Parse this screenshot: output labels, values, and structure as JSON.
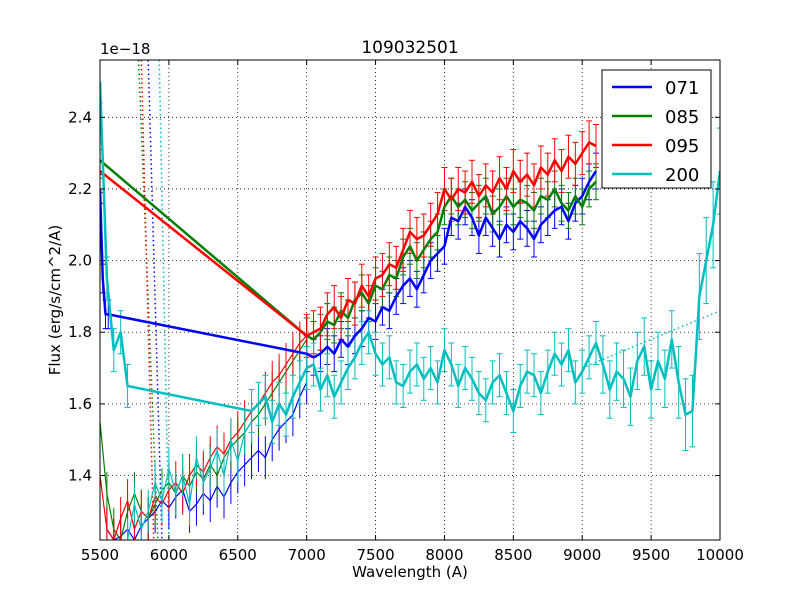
{
  "chart_data": {
    "type": "line",
    "title": "109032501",
    "xlabel": "Wavelength (A)",
    "ylabel": "Flux (erg/s/cm^2/A)",
    "y_offset_label": "1e−18",
    "xlim": [
      5500,
      10000
    ],
    "ylim": [
      1.22,
      2.56
    ],
    "xticks": [
      5500,
      6000,
      6500,
      7000,
      7500,
      8000,
      8500,
      9000,
      9500,
      10000
    ],
    "xtick_labels": [
      "5500",
      "6000",
      "6500",
      "7000",
      "7500",
      "8000",
      "8500",
      "9000",
      "9500",
      "10000"
    ],
    "yticks": [
      1.4,
      1.6,
      1.8,
      2.0,
      2.2,
      2.4
    ],
    "ytick_labels": [
      "1.4",
      "1.6",
      "1.8",
      "2.0",
      "2.2",
      "2.4"
    ],
    "grid": true,
    "legend_position": "top-right",
    "series": [
      {
        "name": "071",
        "color": "#0000ff",
        "x": [
          5500,
          5520,
          5540,
          5560,
          7000,
          7050,
          7100,
          7150,
          7200,
          7250,
          7300,
          7350,
          7400,
          7450,
          7500,
          7550,
          7600,
          7650,
          7700,
          7750,
          7800,
          7850,
          7900,
          7950,
          8000,
          8050,
          8100,
          8150,
          8200,
          8250,
          8300,
          8350,
          8400,
          8450,
          8500,
          8550,
          8600,
          8650,
          8700,
          8750,
          8800,
          8850,
          8900,
          8950,
          9000,
          9050,
          9100
        ],
        "values": [
          2.2,
          1.95,
          1.85,
          1.85,
          1.74,
          1.73,
          1.74,
          1.76,
          1.74,
          1.78,
          1.76,
          1.79,
          1.81,
          1.84,
          1.83,
          1.87,
          1.86,
          1.9,
          1.93,
          1.95,
          1.92,
          1.96,
          2.0,
          2.02,
          2.04,
          2.12,
          2.11,
          2.15,
          2.12,
          2.07,
          2.12,
          2.09,
          2.06,
          2.1,
          2.08,
          2.11,
          2.09,
          2.06,
          2.1,
          2.12,
          2.14,
          2.15,
          2.11,
          2.16,
          2.18,
          2.22,
          2.25
        ],
        "errors": [
          0.04,
          0.04,
          0.04,
          0.04,
          0.05,
          0.05,
          0.05,
          0.05,
          0.05,
          0.05,
          0.05,
          0.05,
          0.05,
          0.05,
          0.05,
          0.05,
          0.05,
          0.05,
          0.05,
          0.05,
          0.05,
          0.05,
          0.05,
          0.05,
          0.05,
          0.05,
          0.05,
          0.05,
          0.05,
          0.05,
          0.05,
          0.05,
          0.05,
          0.05,
          0.05,
          0.05,
          0.05,
          0.05,
          0.05,
          0.05,
          0.05,
          0.05,
          0.05,
          0.05,
          0.05,
          0.05,
          0.05
        ]
      },
      {
        "name": "085",
        "color": "#008000",
        "x": [
          5500,
          7000,
          7050,
          7100,
          7150,
          7200,
          7250,
          7300,
          7350,
          7400,
          7450,
          7500,
          7550,
          7600,
          7650,
          7700,
          7750,
          7800,
          7850,
          7900,
          7950,
          8000,
          8050,
          8100,
          8150,
          8200,
          8250,
          8300,
          8350,
          8400,
          8450,
          8500,
          8550,
          8600,
          8650,
          8700,
          8750,
          8800,
          8850,
          8900,
          8950,
          9000,
          9050,
          9100
        ],
        "values": [
          2.28,
          1.79,
          1.78,
          1.8,
          1.83,
          1.82,
          1.86,
          1.84,
          1.89,
          1.91,
          1.88,
          1.93,
          1.92,
          1.96,
          1.95,
          2.01,
          2.04,
          2.0,
          2.03,
          2.06,
          2.08,
          2.15,
          2.18,
          2.15,
          2.17,
          2.14,
          2.16,
          2.18,
          2.13,
          2.15,
          2.18,
          2.15,
          2.17,
          2.16,
          2.14,
          2.18,
          2.17,
          2.2,
          2.16,
          2.14,
          2.18,
          2.15,
          2.2,
          2.22
        ],
        "errors": [
          0.05,
          0.05,
          0.05,
          0.05,
          0.05,
          0.05,
          0.05,
          0.05,
          0.05,
          0.05,
          0.05,
          0.05,
          0.05,
          0.05,
          0.05,
          0.05,
          0.05,
          0.05,
          0.05,
          0.05,
          0.05,
          0.05,
          0.05,
          0.05,
          0.05,
          0.05,
          0.05,
          0.05,
          0.05,
          0.05,
          0.05,
          0.05,
          0.05,
          0.05,
          0.05,
          0.05,
          0.05,
          0.05,
          0.05,
          0.05,
          0.05,
          0.05,
          0.05,
          0.05
        ]
      },
      {
        "name": "095",
        "color": "#ff0000",
        "x": [
          5500,
          7000,
          7050,
          7100,
          7150,
          7200,
          7250,
          7300,
          7350,
          7400,
          7450,
          7500,
          7550,
          7600,
          7650,
          7700,
          7750,
          7800,
          7850,
          7900,
          7950,
          8000,
          8050,
          8100,
          8150,
          8200,
          8250,
          8300,
          8350,
          8400,
          8450,
          8500,
          8550,
          8600,
          8650,
          8700,
          8750,
          8800,
          8850,
          8900,
          8950,
          9000,
          9050,
          9100
        ],
        "values": [
          2.25,
          1.79,
          1.8,
          1.81,
          1.85,
          1.87,
          1.84,
          1.89,
          1.88,
          1.93,
          1.9,
          1.95,
          1.96,
          1.99,
          1.98,
          2.03,
          2.08,
          2.06,
          2.07,
          2.1,
          2.13,
          2.2,
          2.17,
          2.2,
          2.19,
          2.22,
          2.18,
          2.21,
          2.19,
          2.23,
          2.2,
          2.25,
          2.22,
          2.24,
          2.21,
          2.26,
          2.24,
          2.28,
          2.25,
          2.29,
          2.27,
          2.3,
          2.33,
          2.32
        ],
        "errors": [
          0.06,
          0.06,
          0.06,
          0.06,
          0.06,
          0.06,
          0.06,
          0.06,
          0.06,
          0.06,
          0.06,
          0.06,
          0.06,
          0.06,
          0.06,
          0.06,
          0.06,
          0.06,
          0.06,
          0.06,
          0.06,
          0.06,
          0.06,
          0.06,
          0.06,
          0.06,
          0.06,
          0.06,
          0.06,
          0.06,
          0.06,
          0.06,
          0.06,
          0.06,
          0.06,
          0.06,
          0.06,
          0.06,
          0.06,
          0.06,
          0.06,
          0.06,
          0.06,
          0.06
        ]
      },
      {
        "name": "200",
        "color": "#00bfbf",
        "x": [
          5500,
          5550,
          5600,
          5650,
          5700,
          6600,
          6650,
          6700,
          6750,
          6800,
          6850,
          6900,
          6950,
          7000,
          7050,
          7100,
          7150,
          7200,
          7250,
          7300,
          7350,
          7400,
          7450,
          7500,
          7550,
          7600,
          7650,
          7700,
          7750,
          7800,
          7850,
          7900,
          7950,
          8000,
          8050,
          8100,
          8150,
          8200,
          8250,
          8300,
          8350,
          8400,
          8450,
          8500,
          8550,
          8600,
          8650,
          8700,
          8750,
          8800,
          8850,
          8900,
          8950,
          9000,
          9050,
          9100,
          9150,
          9200,
          9250,
          9300,
          9350,
          9400,
          9450,
          9500,
          9550,
          9600,
          9650,
          9700,
          9750,
          9800,
          9850,
          9900,
          9950,
          10000
        ],
        "values": [
          2.5,
          1.95,
          1.75,
          1.8,
          1.65,
          1.58,
          1.6,
          1.62,
          1.55,
          1.6,
          1.57,
          1.62,
          1.66,
          1.7,
          1.71,
          1.64,
          1.68,
          1.62,
          1.66,
          1.7,
          1.73,
          1.77,
          1.8,
          1.74,
          1.71,
          1.73,
          1.66,
          1.65,
          1.69,
          1.71,
          1.67,
          1.7,
          1.66,
          1.75,
          1.71,
          1.65,
          1.7,
          1.67,
          1.63,
          1.61,
          1.66,
          1.68,
          1.63,
          1.58,
          1.65,
          1.69,
          1.68,
          1.63,
          1.69,
          1.74,
          1.71,
          1.75,
          1.66,
          1.69,
          1.73,
          1.77,
          1.71,
          1.64,
          1.69,
          1.67,
          1.62,
          1.72,
          1.76,
          1.64,
          1.72,
          1.67,
          1.78,
          1.66,
          1.57,
          1.58,
          1.9,
          2.0,
          2.1,
          2.25
        ],
        "errors": [
          0.06,
          0.06,
          0.06,
          0.06,
          0.06,
          0.06,
          0.06,
          0.06,
          0.06,
          0.06,
          0.06,
          0.06,
          0.06,
          0.06,
          0.06,
          0.06,
          0.06,
          0.06,
          0.06,
          0.06,
          0.06,
          0.06,
          0.06,
          0.06,
          0.06,
          0.06,
          0.06,
          0.06,
          0.06,
          0.06,
          0.06,
          0.06,
          0.06,
          0.06,
          0.06,
          0.06,
          0.06,
          0.06,
          0.06,
          0.06,
          0.06,
          0.06,
          0.06,
          0.06,
          0.06,
          0.06,
          0.06,
          0.06,
          0.06,
          0.06,
          0.06,
          0.06,
          0.06,
          0.06,
          0.06,
          0.06,
          0.08,
          0.08,
          0.08,
          0.08,
          0.08,
          0.08,
          0.08,
          0.08,
          0.08,
          0.08,
          0.08,
          0.1,
          0.1,
          0.1,
          0.12,
          0.12,
          0.12,
          0.12
        ]
      }
    ],
    "faint_segments": [
      {
        "name": "071",
        "color": "#0000ff",
        "x": [
          5550,
          5600,
          5650,
          5700,
          5750,
          5800,
          5850,
          5900,
          5950,
          6000,
          6050,
          6100,
          6150,
          6200,
          6250,
          6300,
          6350,
          6400,
          6450,
          6500,
          6550,
          6600,
          6650,
          6700,
          6750,
          6800,
          6850,
          6900,
          6950,
          7000
        ],
        "values": [
          1.25,
          1.22,
          1.23,
          1.25,
          1.22,
          1.26,
          1.28,
          1.3,
          1.33,
          1.31,
          1.34,
          1.36,
          1.3,
          1.32,
          1.35,
          1.33,
          1.37,
          1.34,
          1.38,
          1.41,
          1.43,
          1.45,
          1.47,
          1.45,
          1.5,
          1.53,
          1.55,
          1.57,
          1.62,
          1.66
        ]
      },
      {
        "name": "085",
        "color": "#008000",
        "x": [
          5500,
          5550,
          5600,
          5650,
          5700,
          5750,
          5800,
          5850,
          5900,
          5950,
          6000,
          6050,
          6100,
          6150,
          6200,
          6250,
          6300,
          6350,
          6400,
          6450,
          6500,
          6550,
          6600,
          6650,
          6700,
          6750,
          6800,
          6850,
          6900,
          6950,
          7000
        ],
        "values": [
          1.55,
          1.35,
          1.25,
          1.22,
          1.3,
          1.35,
          1.3,
          1.28,
          1.32,
          1.36,
          1.38,
          1.35,
          1.4,
          1.37,
          1.41,
          1.39,
          1.43,
          1.4,
          1.45,
          1.48,
          1.5,
          1.52,
          1.55,
          1.57,
          1.6,
          1.63,
          1.66,
          1.69,
          1.72,
          1.75,
          1.78
        ]
      },
      {
        "name": "095",
        "color": "#ff0000",
        "x": [
          5500,
          5550,
          5600,
          5650,
          5700,
          5750,
          5800,
          5850,
          5900,
          5950,
          6000,
          6050,
          6100,
          6150,
          6200,
          6250,
          6300,
          6350,
          6400,
          6450,
          6500,
          6550,
          6600,
          6650,
          6700,
          6750,
          6800,
          6850,
          6900,
          6950,
          7000
        ],
        "values": [
          1.4,
          1.25,
          1.22,
          1.28,
          1.33,
          1.25,
          1.3,
          1.28,
          1.34,
          1.32,
          1.36,
          1.38,
          1.35,
          1.4,
          1.43,
          1.41,
          1.45,
          1.48,
          1.46,
          1.5,
          1.52,
          1.55,
          1.58,
          1.6,
          1.63,
          1.66,
          1.68,
          1.71,
          1.74,
          1.77,
          1.79
        ]
      },
      {
        "name": "200",
        "color": "#00bfbf",
        "x": [
          5700,
          5750,
          5800,
          5850,
          5900,
          5950,
          6000,
          6050,
          6100,
          6150,
          6200,
          6250,
          6300,
          6350,
          6400,
          6450,
          6500,
          6550,
          6600
        ],
        "values": [
          1.22,
          1.32,
          1.25,
          1.3,
          1.38,
          1.33,
          1.42,
          1.35,
          1.4,
          1.32,
          1.45,
          1.38,
          1.42,
          1.47,
          1.4,
          1.5,
          1.44,
          1.52,
          1.55
        ]
      }
    ],
    "dotted_lines": [
      {
        "name": "071",
        "color": "#0000ff",
        "x": [
          5850,
          5950
        ],
        "values": [
          2.56,
          1.22
        ]
      },
      {
        "name": "085",
        "color": "#008000",
        "x": [
          5780,
          5920
        ],
        "values": [
          2.56,
          1.22
        ]
      },
      {
        "name": "095",
        "color": "#ff0000",
        "x": [
          5800,
          5890
        ],
        "values": [
          2.56,
          1.22
        ]
      },
      {
        "name": "200",
        "color": "#00bfbf",
        "x": [
          5930,
          6000
        ],
        "values": [
          2.56,
          1.22
        ]
      },
      {
        "name": "200",
        "color": "#00bfbf",
        "x": [
          9000,
          10000
        ],
        "values": [
          1.7,
          1.86
        ]
      }
    ]
  }
}
